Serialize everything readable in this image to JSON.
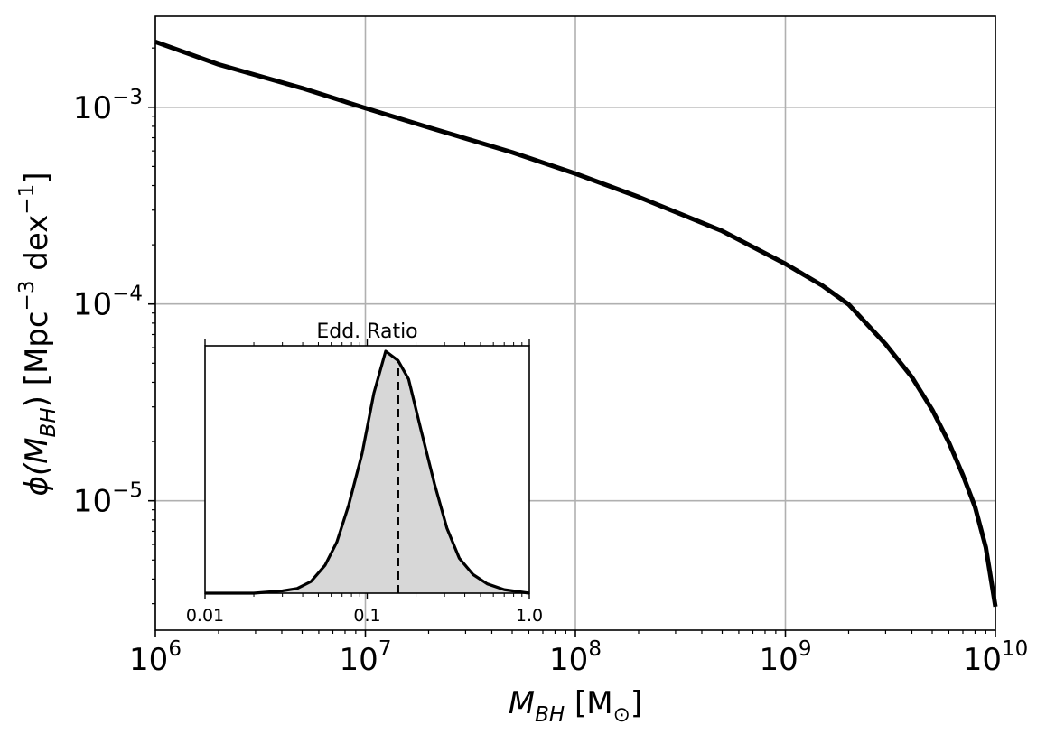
{
  "chart_data": [
    {
      "type": "line",
      "xscale": "log",
      "yscale": "log",
      "xlim": [
        1000000,
        10000000000
      ],
      "ylim": [
        2.2e-06,
        0.0029
      ],
      "grid": true,
      "xlabel": "M_BH [M_⊙]",
      "ylabel": "ϕ(M_BH) [Mpc^−3 dex^−1]",
      "x_ticks": [
        {
          "value": 1000000,
          "base": "10",
          "exp": "6"
        },
        {
          "value": 10000000,
          "base": "10",
          "exp": "7"
        },
        {
          "value": 100000000,
          "base": "10",
          "exp": "8"
        },
        {
          "value": 1000000000,
          "base": "10",
          "exp": "9"
        },
        {
          "value": 10000000000,
          "base": "10",
          "exp": "10"
        }
      ],
      "y_ticks": [
        {
          "value": 0.001,
          "base": "10",
          "exp": "−3"
        },
        {
          "value": 0.0001,
          "base": "10",
          "exp": "−4"
        },
        {
          "value": 1e-05,
          "base": "10",
          "exp": "−5"
        }
      ],
      "series": [
        {
          "color": "#000000",
          "x": [
            1000000,
            2000000,
            5000000,
            10000000,
            20000000,
            50000000,
            100000000,
            200000000,
            500000000,
            1000000000,
            1500000000,
            2000000000,
            3000000000,
            4000000000,
            5000000000,
            6000000000,
            7000000000,
            8000000000,
            9000000000,
            10000000000
          ],
          "y": [
            0.00215,
            0.00165,
            0.00125,
            0.00099,
            0.00079,
            0.00059,
            0.00046,
            0.00035,
            0.000235,
            0.00016,
            0.000124,
            9.95e-05,
            6.25e-05,
            4.25e-05,
            2.9e-05,
            1.98e-05,
            1.35e-05,
            9.3e-06,
            5.8e-06,
            2.9e-06
          ]
        }
      ]
    },
    {
      "type": "area",
      "title": "Edd. Ratio",
      "xscale": "log",
      "xlim": [
        0.01,
        1.0
      ],
      "ylim": [
        0,
        1.0
      ],
      "x_ticks": [
        {
          "value": 0.01,
          "label": "0.01"
        },
        {
          "value": 0.1,
          "label": "0.1"
        },
        {
          "value": 1.0,
          "label": "1.0"
        }
      ],
      "fill_color": "#d7d7d7",
      "line_color": "#000000",
      "series": [
        {
          "x": [
            0.01,
            0.02,
            0.03,
            0.037,
            0.045,
            0.055,
            0.065,
            0.077,
            0.093,
            0.11,
            0.13,
            0.155,
            0.18,
            0.215,
            0.26,
            0.31,
            0.37,
            0.45,
            0.55,
            0.7,
            1.0
          ],
          "y": [
            0.0,
            0.0,
            0.01,
            0.02,
            0.05,
            0.12,
            0.22,
            0.38,
            0.6,
            0.86,
            1.04,
            1.0,
            0.92,
            0.7,
            0.47,
            0.28,
            0.15,
            0.08,
            0.04,
            0.015,
            0.0
          ]
        }
      ],
      "vline": {
        "x": 0.155,
        "style": "dashed",
        "color": "#000000"
      }
    }
  ]
}
